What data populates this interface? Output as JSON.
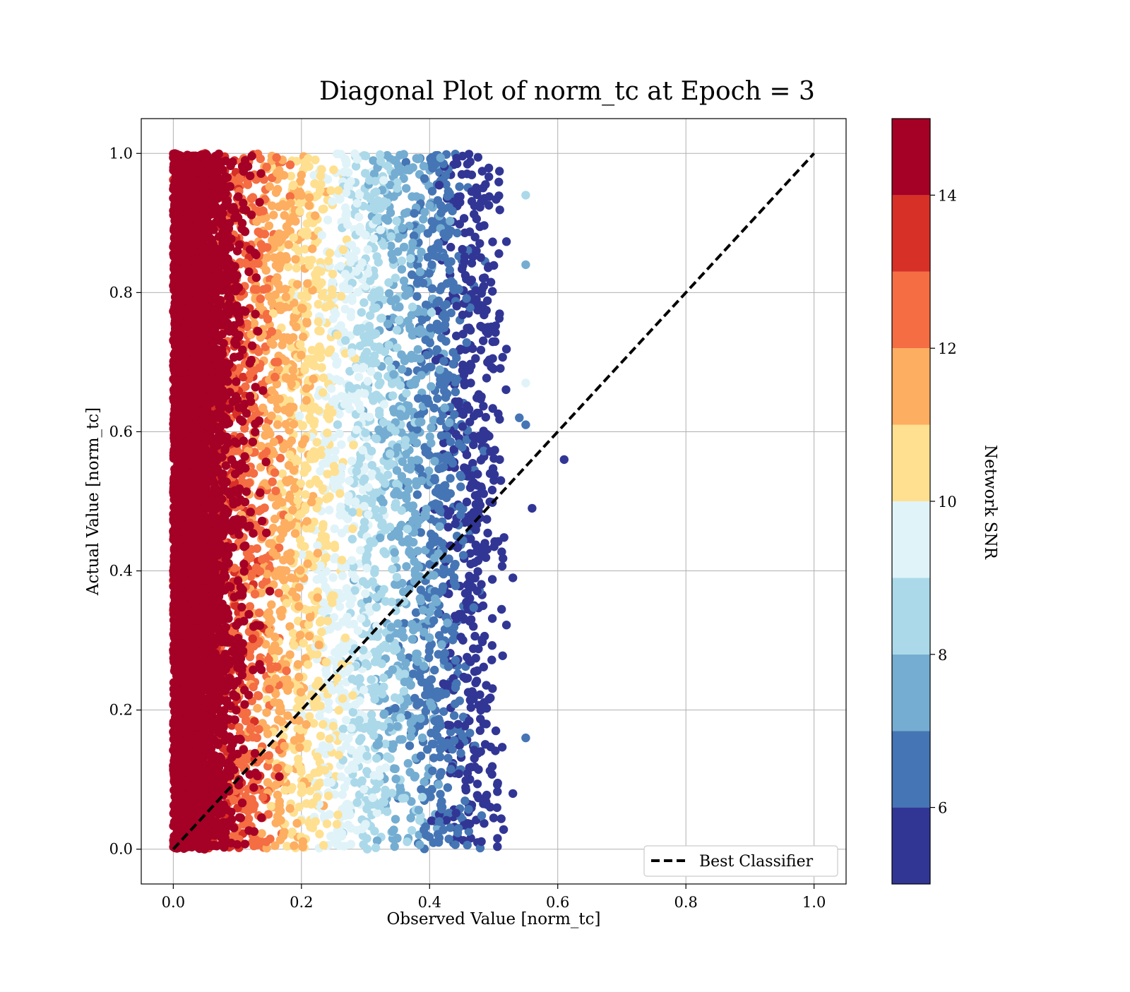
{
  "chart_data": {
    "type": "scatter",
    "title": "Diagonal Plot of norm_tc at Epoch = 3",
    "xlabel": "Observed Value [norm_tc]",
    "ylabel": "Actual Value [norm_tc]",
    "xlim": [
      -0.05,
      1.05
    ],
    "ylim": [
      -0.05,
      1.05
    ],
    "x_ticks": [
      "0.0",
      "0.2",
      "0.4",
      "0.6",
      "0.8",
      "1.0"
    ],
    "y_ticks": [
      "0.0",
      "0.2",
      "0.4",
      "0.6",
      "0.8",
      "1.0"
    ],
    "grid": true,
    "legend": {
      "placement": "lower-right",
      "entries": [
        "Best Classifier"
      ]
    },
    "diagonal_line": {
      "x": [
        0,
        1
      ],
      "y": [
        0,
        1
      ],
      "style": "dashed",
      "color": "#000000",
      "label": "Best Classifier"
    },
    "colorbar": {
      "label": "Network SNR",
      "range": [
        5,
        15
      ],
      "ticks": [
        "6",
        "8",
        "10",
        "12",
        "14"
      ],
      "levels": [
        5,
        6,
        7,
        8,
        9,
        10,
        11,
        12,
        13,
        14,
        15
      ],
      "colors": [
        "#313695",
        "#4575b4",
        "#74add1",
        "#abd9e9",
        "#e0f3f8",
        "#fee090",
        "#fdae61",
        "#f46d43",
        "#d73027",
        "#a50026"
      ]
    },
    "scatter_model": {
      "description_of_values": "observed x ≈ 0.5 × (14.8 − snr)/10 clamped to [0, 0.52]; actual y uniform in [0, 1]",
      "x_max": 0.52,
      "y_range": [
        0,
        1
      ],
      "snr_range": [
        5,
        15
      ]
    },
    "outliers": [
      {
        "x": 0.61,
        "y": 0.56,
        "snr": 5.2
      },
      {
        "x": 0.56,
        "y": 0.49,
        "snr": 5.5
      },
      {
        "x": 0.55,
        "y": 0.67,
        "snr": 9.6
      },
      {
        "x": 0.55,
        "y": 0.84,
        "snr": 7.2
      },
      {
        "x": 0.55,
        "y": 0.16,
        "snr": 6.2
      },
      {
        "x": 0.55,
        "y": 0.94,
        "snr": 8.5
      },
      {
        "x": 0.53,
        "y": 0.39,
        "snr": 5.3
      },
      {
        "x": 0.53,
        "y": 0.08,
        "snr": 5.8
      },
      {
        "x": 0.54,
        "y": 0.62,
        "snr": 6.4
      },
      {
        "x": 0.55,
        "y": 0.61,
        "snr": 6.8
      }
    ]
  }
}
